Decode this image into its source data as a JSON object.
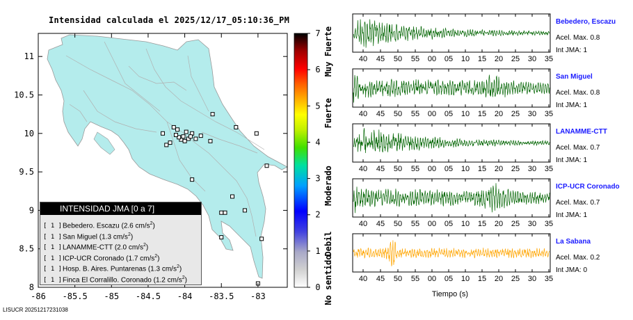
{
  "map": {
    "title": "Intensidad calculada el 2025/12/17_05:10:36_PM",
    "x_ticks": [
      "-86",
      "-85.5",
      "-85",
      "-84.5",
      "-84",
      "-83.5",
      "-83"
    ],
    "x_values": [
      -86,
      -85.5,
      -85,
      -84.5,
      -84,
      -83.5,
      -83
    ],
    "y_ticks": [
      "11",
      "10.5",
      "10",
      "9.5",
      "9",
      "8.5",
      "8"
    ],
    "y_values": [
      11,
      10.5,
      10,
      9.5,
      9,
      8.5,
      8
    ],
    "xlim": [
      -86,
      -82.6
    ],
    "ylim": [
      8,
      11.3
    ],
    "land_color": "#b4ecec",
    "stations": [
      [
        -83.95,
        9.93
      ],
      [
        -83.9,
        10.0
      ],
      [
        -84.05,
        9.92
      ],
      [
        -83.85,
        9.93
      ],
      [
        -83.78,
        9.97
      ],
      [
        -84.1,
        10.05
      ],
      [
        -84.02,
        9.96
      ],
      [
        -83.98,
        10.02
      ],
      [
        -84.08,
        9.95
      ],
      [
        -84.12,
        9.98
      ],
      [
        -83.92,
        9.96
      ],
      [
        -84.0,
        9.9
      ],
      [
        -84.2,
        9.88
      ],
      [
        -84.15,
        10.08
      ],
      [
        -84.3,
        10.0
      ],
      [
        -84.25,
        9.85
      ],
      [
        -83.65,
        9.9
      ],
      [
        -83.62,
        10.25
      ],
      [
        -83.3,
        10.08
      ],
      [
        -83.02,
        10.0
      ],
      [
        -83.9,
        9.4
      ],
      [
        -83.35,
        9.18
      ],
      [
        -83.5,
        8.97
      ],
      [
        -83.45,
        8.97
      ],
      [
        -83.18,
        9.0
      ],
      [
        -83.5,
        8.65
      ],
      [
        -82.95,
        8.63
      ],
      [
        -83.0,
        8.05
      ],
      [
        -82.88,
        9.58
      ]
    ]
  },
  "colorbar": {
    "ticks": [
      "7",
      "6",
      "5",
      "4",
      "3",
      "2",
      "1",
      "0"
    ],
    "values": [
      7,
      6,
      5,
      4,
      3,
      2,
      1,
      0
    ],
    "labels": [
      "Muy Fuerte",
      "Fuerte",
      "Moderado",
      "Debil",
      "No sentido"
    ],
    "label_values": [
      6.5,
      4.8,
      2.8,
      1.2,
      0.2
    ]
  },
  "legend": {
    "title": "INTENSIDAD JMA [0 a 7]",
    "items": [
      {
        "level": "[ 1 ]",
        "name": "Bebedero. Escazu (2.6 cm/s",
        "sup": "2",
        "close": ")"
      },
      {
        "level": "[ 1 ]",
        "name": "San Miguel (1.3 cm/s",
        "sup": "2",
        "close": ")"
      },
      {
        "level": "[ 1 ]",
        "name": "LANAMME-CTT (2.0 cm/s",
        "sup": "2",
        "close": ")"
      },
      {
        "level": "[ 1 ]",
        "name": "ICP-UCR Coronado (1.7 cm/s",
        "sup": "2",
        "close": ")"
      },
      {
        "level": "[ 1 ]",
        "name": "Hosp. B. Aires. Puntarenas (1.3 cm/s",
        "sup": "2",
        "close": ")"
      },
      {
        "level": "[ 1 ]",
        "name": "Finca El Corralillo. Coronado (1.2 cm/s",
        "sup": "2",
        "close": ")"
      }
    ]
  },
  "chart_data": {
    "type": "line",
    "title": "",
    "xlabel": "Tiempo (s)",
    "x_tick_labels": [
      "40",
      "45",
      "50",
      "55",
      "00",
      "05",
      "10",
      "15",
      "20",
      "25",
      "30",
      "35"
    ],
    "series": [
      {
        "name": "Bebedero, Escazu",
        "acel_label": "Acel. Max. 0.8",
        "int_label": "Int JMA: 1",
        "color": "#006400",
        "pattern": "decay"
      },
      {
        "name": "San Miguel",
        "acel_label": "Acel. Max. 0.8",
        "int_label": "Int JMA: 1",
        "color": "#006400",
        "pattern": "sustained"
      },
      {
        "name": "LANAMME-CTT",
        "acel_label": "Acel. Max. 0.7",
        "int_label": "Int JMA: 1",
        "color": "#006400",
        "pattern": "decay"
      },
      {
        "name": "ICP-UCR Coronado",
        "acel_label": "Acel. Max. 0.7",
        "int_label": "Int JMA: 1",
        "color": "#006400",
        "pattern": "sustained"
      },
      {
        "name": "La Sabana",
        "acel_label": "Acel. Max. 0.2",
        "int_label": "Int JMA: 0",
        "color": "#ffa500",
        "pattern": "noise"
      }
    ]
  },
  "footer": "LISUCR 20251217231038"
}
